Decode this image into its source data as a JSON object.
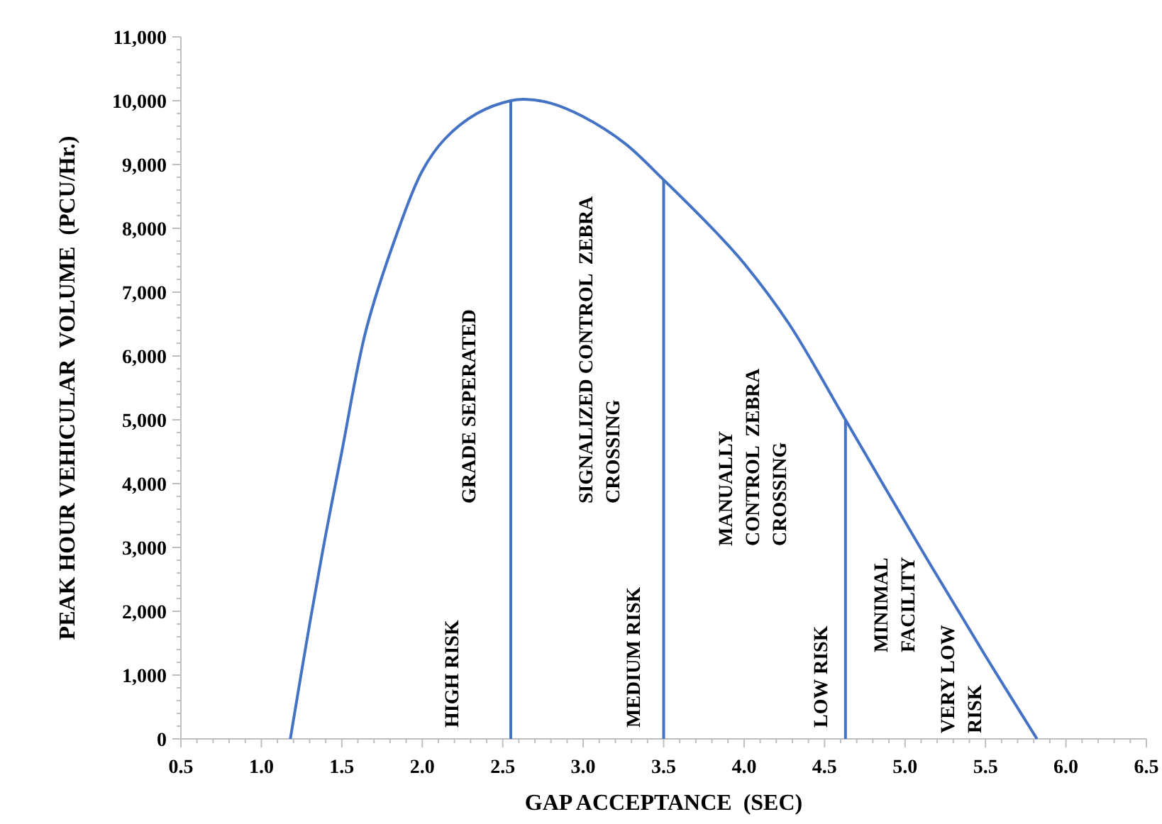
{
  "chart_data": {
    "type": "line",
    "xlabel": "GAP ACCEPTANCE  (SEC)",
    "ylabel": "PEAK HOUR VEHICULAR  VOLUME  (PCU/Hr.)",
    "xlim": [
      0.5,
      6.5
    ],
    "xticks": [
      {
        "value": 0.5,
        "label": "0.5"
      },
      {
        "value": 1,
        "label": "1.0"
      },
      {
        "value": 1.5,
        "label": "1.5"
      },
      {
        "value": 2,
        "label": "2.0"
      },
      {
        "value": 2.5,
        "label": "2.5"
      },
      {
        "value": 3,
        "label": "3.0"
      },
      {
        "value": 3.5,
        "label": "3.5"
      },
      {
        "value": 4,
        "label": "4.0"
      },
      {
        "value": 4.5,
        "label": "4.5"
      },
      {
        "value": 5,
        "label": "5.0"
      },
      {
        "value": 5.5,
        "label": "5.5"
      },
      {
        "value": 6,
        "label": "6.0"
      },
      {
        "value": 6.5,
        "label": "6.5"
      }
    ],
    "ylim": [
      0,
      11000
    ],
    "yticks": [
      0,
      {
        "value": 1000,
        "label": "1,000"
      },
      {
        "value": 2000,
        "label": "2,000"
      },
      {
        "value": 3000,
        "label": "3,000"
      },
      {
        "value": 4000,
        "label": "4,000"
      },
      {
        "value": 5000,
        "label": "5,000"
      },
      {
        "value": 6000,
        "label": "6,000"
      },
      {
        "value": 7000,
        "label": "7,000"
      },
      {
        "value": 8000,
        "label": "8,000"
      },
      {
        "value": 9000,
        "label": "9,000"
      },
      {
        "value": 10000,
        "label": "10,000"
      },
      {
        "value": 11000,
        "label": "11,000"
      }
    ],
    "grid": false,
    "marker": "none",
    "line_style": "solid",
    "series": [
      {
        "color": "#4472c4",
        "x": [
          1.18,
          1.3,
          1.4,
          1.5,
          1.65,
          1.84,
          2.0,
          2.14,
          2.34,
          2.55,
          2.65,
          2.8,
          3.0,
          3.26,
          3.5,
          3.84,
          4.0,
          4.28,
          4.63,
          5.08,
          5.5,
          5.82
        ],
        "values": [
          0,
          1800,
          3200,
          4500,
          6400,
          7900,
          8900,
          9400,
          9800,
          10000,
          10020,
          9960,
          9750,
          9330,
          8760,
          7900,
          7450,
          6500,
          5000,
          3060,
          1300,
          0
        ]
      },
      {
        "color": "#4472c4",
        "x": [
          2.55,
          2.55
        ],
        "values": [
          0,
          10000
        ]
      },
      {
        "color": "#4472c4",
        "x": [
          3.5,
          3.5
        ],
        "values": [
          0,
          8760
        ]
      },
      {
        "color": "#4472c4",
        "x": [
          4.63,
          4.63
        ],
        "values": [
          0,
          5000
        ]
      }
    ],
    "annotations": [
      "GRADE SEPERATED",
      "HIGH RISK",
      "SIGNALIZED CONTROL  ZEBRA\nCROSSING",
      "MEDIUM RISK",
      "MANUALLY\nCONTROL  ZEBRA\nCROSSING",
      "LOW RISK",
      "MINIMAL\nFACILITY",
      "VERY LOW\nRISK"
    ]
  }
}
